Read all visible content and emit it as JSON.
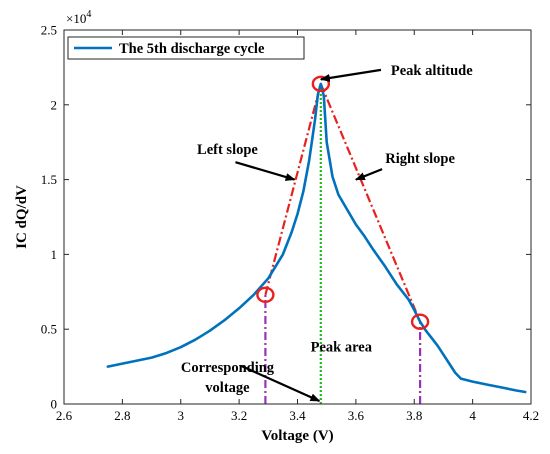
{
  "chart_data": {
    "type": "line",
    "xlabel": "Voltage (V)",
    "ylabel": "IC dQ/dV",
    "xlim": [
      2.6,
      4.2
    ],
    "ylim": [
      0,
      25000
    ],
    "x_ticks": [
      "2.6",
      "2.8",
      "3",
      "3.2",
      "3.4",
      "3.6",
      "3.8",
      "4",
      "4.2"
    ],
    "y_ticks": [
      "0",
      "0.5",
      "1",
      "1.5",
      "2",
      "2.5"
    ],
    "y_exponent_base": "×10",
    "y_exponent_power": "4",
    "grid": false,
    "legend_position": "top-left",
    "series": [
      {
        "name": "The 5th discharge cycle",
        "color": "#0072BD",
        "x": [
          2.75,
          2.8,
          2.85,
          2.9,
          2.95,
          3.0,
          3.05,
          3.1,
          3.15,
          3.2,
          3.25,
          3.3,
          3.35,
          3.38,
          3.4,
          3.42,
          3.44,
          3.46,
          3.47,
          3.48,
          3.49,
          3.5,
          3.52,
          3.54,
          3.57,
          3.6,
          3.63,
          3.66,
          3.7,
          3.74,
          3.78,
          3.8,
          3.82,
          3.84,
          3.86,
          3.88,
          3.9,
          3.92,
          3.94,
          3.96,
          3.98,
          4.0,
          4.05,
          4.1,
          4.15,
          4.18
        ],
        "y": [
          2500,
          2700,
          2900,
          3100,
          3400,
          3800,
          4300,
          4900,
          5600,
          6400,
          7300,
          8400,
          10000,
          11500,
          12700,
          14200,
          16300,
          19000,
          20700,
          21400,
          20600,
          17500,
          15200,
          14000,
          13000,
          12000,
          11200,
          10300,
          9200,
          8000,
          7000,
          6300,
          5500,
          4900,
          4400,
          3900,
          3300,
          2700,
          2100,
          1700,
          1600,
          1500,
          1300,
          1100,
          900,
          800
        ]
      }
    ],
    "construction_lines": {
      "left_slope": {
        "color": "#E8201E",
        "x": [
          3.29,
          3.48
        ],
        "y": [
          7300,
          21400
        ]
      },
      "right_slope": {
        "color": "#E8201E",
        "x": [
          3.48,
          3.82
        ],
        "y": [
          21400,
          5500
        ]
      },
      "peak_vertical": {
        "color": "#22B822",
        "x": [
          3.48,
          3.48
        ],
        "y": [
          0,
          21400
        ]
      },
      "left_vertical": {
        "color": "#9B30C0",
        "x": [
          3.29,
          3.29
        ],
        "y": [
          0,
          7300
        ]
      },
      "right_vertical": {
        "color": "#9B30C0",
        "x": [
          3.82,
          3.82
        ],
        "y": [
          0,
          5500
        ]
      }
    },
    "markers": [
      {
        "x": 3.48,
        "y": 21400
      },
      {
        "x": 3.29,
        "y": 7300
      },
      {
        "x": 3.82,
        "y": 5500
      }
    ],
    "annotations": [
      {
        "text": "Peak altitude",
        "x": 3.86,
        "y": 22000,
        "arrow_to": [
          3.48,
          21700
        ]
      },
      {
        "text": "Left slope",
        "x": 3.16,
        "y": 16700,
        "arrow_to": [
          3.39,
          15000
        ]
      },
      {
        "text": "Right slope",
        "x": 3.82,
        "y": 16100,
        "arrow_to": [
          3.6,
          15000
        ]
      },
      {
        "text": "Peak area",
        "x": 3.55,
        "y": 3500
      },
      {
        "text": "Corresponding",
        "x": 3.16,
        "y": 2150
      },
      {
        "text": "voltage",
        "x": 3.16,
        "y": 800,
        "arrow_to": [
          3.475,
          200
        ]
      }
    ]
  }
}
